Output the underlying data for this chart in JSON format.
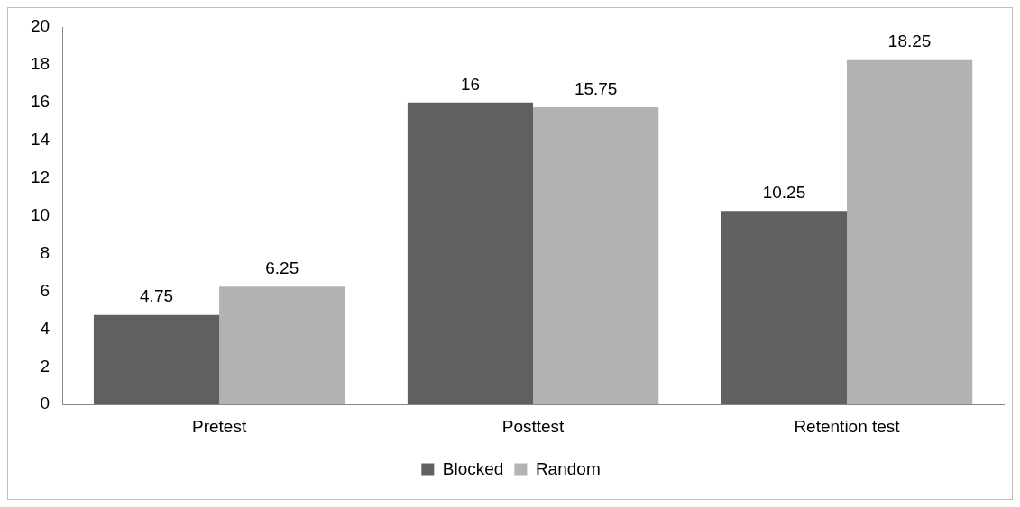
{
  "chart_data": {
    "type": "bar",
    "categories": [
      "Pretest",
      "Posttest",
      "Retention test"
    ],
    "series": [
      {
        "name": "Blocked",
        "color": "#606060",
        "values": [
          4.75,
          16,
          10.25
        ]
      },
      {
        "name": "Random",
        "color": "#b2b2b2",
        "values": [
          6.25,
          15.75,
          18.25
        ]
      }
    ],
    "ylim": [
      0,
      20
    ],
    "yticks": [
      0,
      2,
      4,
      6,
      8,
      10,
      12,
      14,
      16,
      18,
      20
    ],
    "grid": false,
    "legend": "bottom",
    "data_labels": true
  }
}
